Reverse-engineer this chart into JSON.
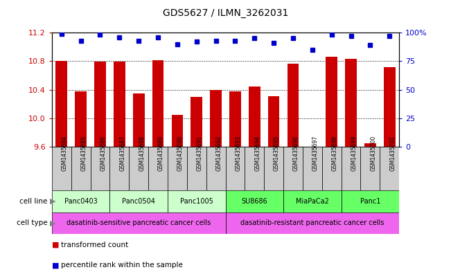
{
  "title": "GDS5627 / ILMN_3262031",
  "samples": [
    "GSM1435684",
    "GSM1435685",
    "GSM1435686",
    "GSM1435687",
    "GSM1435688",
    "GSM1435689",
    "GSM1435690",
    "GSM1435691",
    "GSM1435692",
    "GSM1435693",
    "GSM1435694",
    "GSM1435695",
    "GSM1435696",
    "GSM1435697",
    "GSM1435698",
    "GSM1435699",
    "GSM1435700",
    "GSM1435701"
  ],
  "transformed_counts": [
    10.8,
    10.38,
    10.79,
    10.79,
    10.35,
    10.81,
    10.05,
    10.3,
    10.4,
    10.38,
    10.45,
    10.31,
    10.77,
    9.6,
    10.86,
    10.83,
    9.65,
    10.72
  ],
  "percentile_ranks": [
    99,
    93,
    98,
    96,
    93,
    96,
    90,
    92,
    93,
    93,
    95,
    91,
    95,
    85,
    98,
    97,
    89,
    97
  ],
  "ylim_left": [
    9.6,
    11.2
  ],
  "ylim_right": [
    0,
    100
  ],
  "yticks_left": [
    9.6,
    10.0,
    10.4,
    10.8,
    11.2
  ],
  "yticks_right": [
    0,
    25,
    50,
    75,
    100
  ],
  "ytick_labels_right": [
    "0",
    "25",
    "50",
    "75",
    "100%"
  ],
  "bar_color": "#cc0000",
  "dot_color": "#0000cc",
  "cell_lines": [
    {
      "name": "Panc0403",
      "start": 0,
      "end": 3,
      "color": "#ccffcc"
    },
    {
      "name": "Panc0504",
      "start": 3,
      "end": 6,
      "color": "#ccffcc"
    },
    {
      "name": "Panc1005",
      "start": 6,
      "end": 9,
      "color": "#ccffcc"
    },
    {
      "name": "SU8686",
      "start": 9,
      "end": 12,
      "color": "#66ff66"
    },
    {
      "name": "MiaPaCa2",
      "start": 12,
      "end": 15,
      "color": "#66ff66"
    },
    {
      "name": "Panc1",
      "start": 15,
      "end": 18,
      "color": "#66ff66"
    }
  ],
  "cell_types": [
    {
      "name": "dasatinib-sensitive pancreatic cancer cells",
      "start": 0,
      "end": 9,
      "color": "#ee66ee"
    },
    {
      "name": "dasatinib-resistant pancreatic cancer cells",
      "start": 9,
      "end": 18,
      "color": "#ee66ee"
    }
  ],
  "legend_items": [
    {
      "label": "transformed count",
      "color": "#cc0000"
    },
    {
      "label": "percentile rank within the sample",
      "color": "#0000cc"
    }
  ],
  "grid_color": "black",
  "background_color": "#ffffff",
  "tick_label_color_left": "#cc0000",
  "tick_label_color_right": "#0000cc",
  "sample_box_color": "#cccccc",
  "cell_line_label_color": "#888888",
  "cell_type_label_color": "#888888"
}
